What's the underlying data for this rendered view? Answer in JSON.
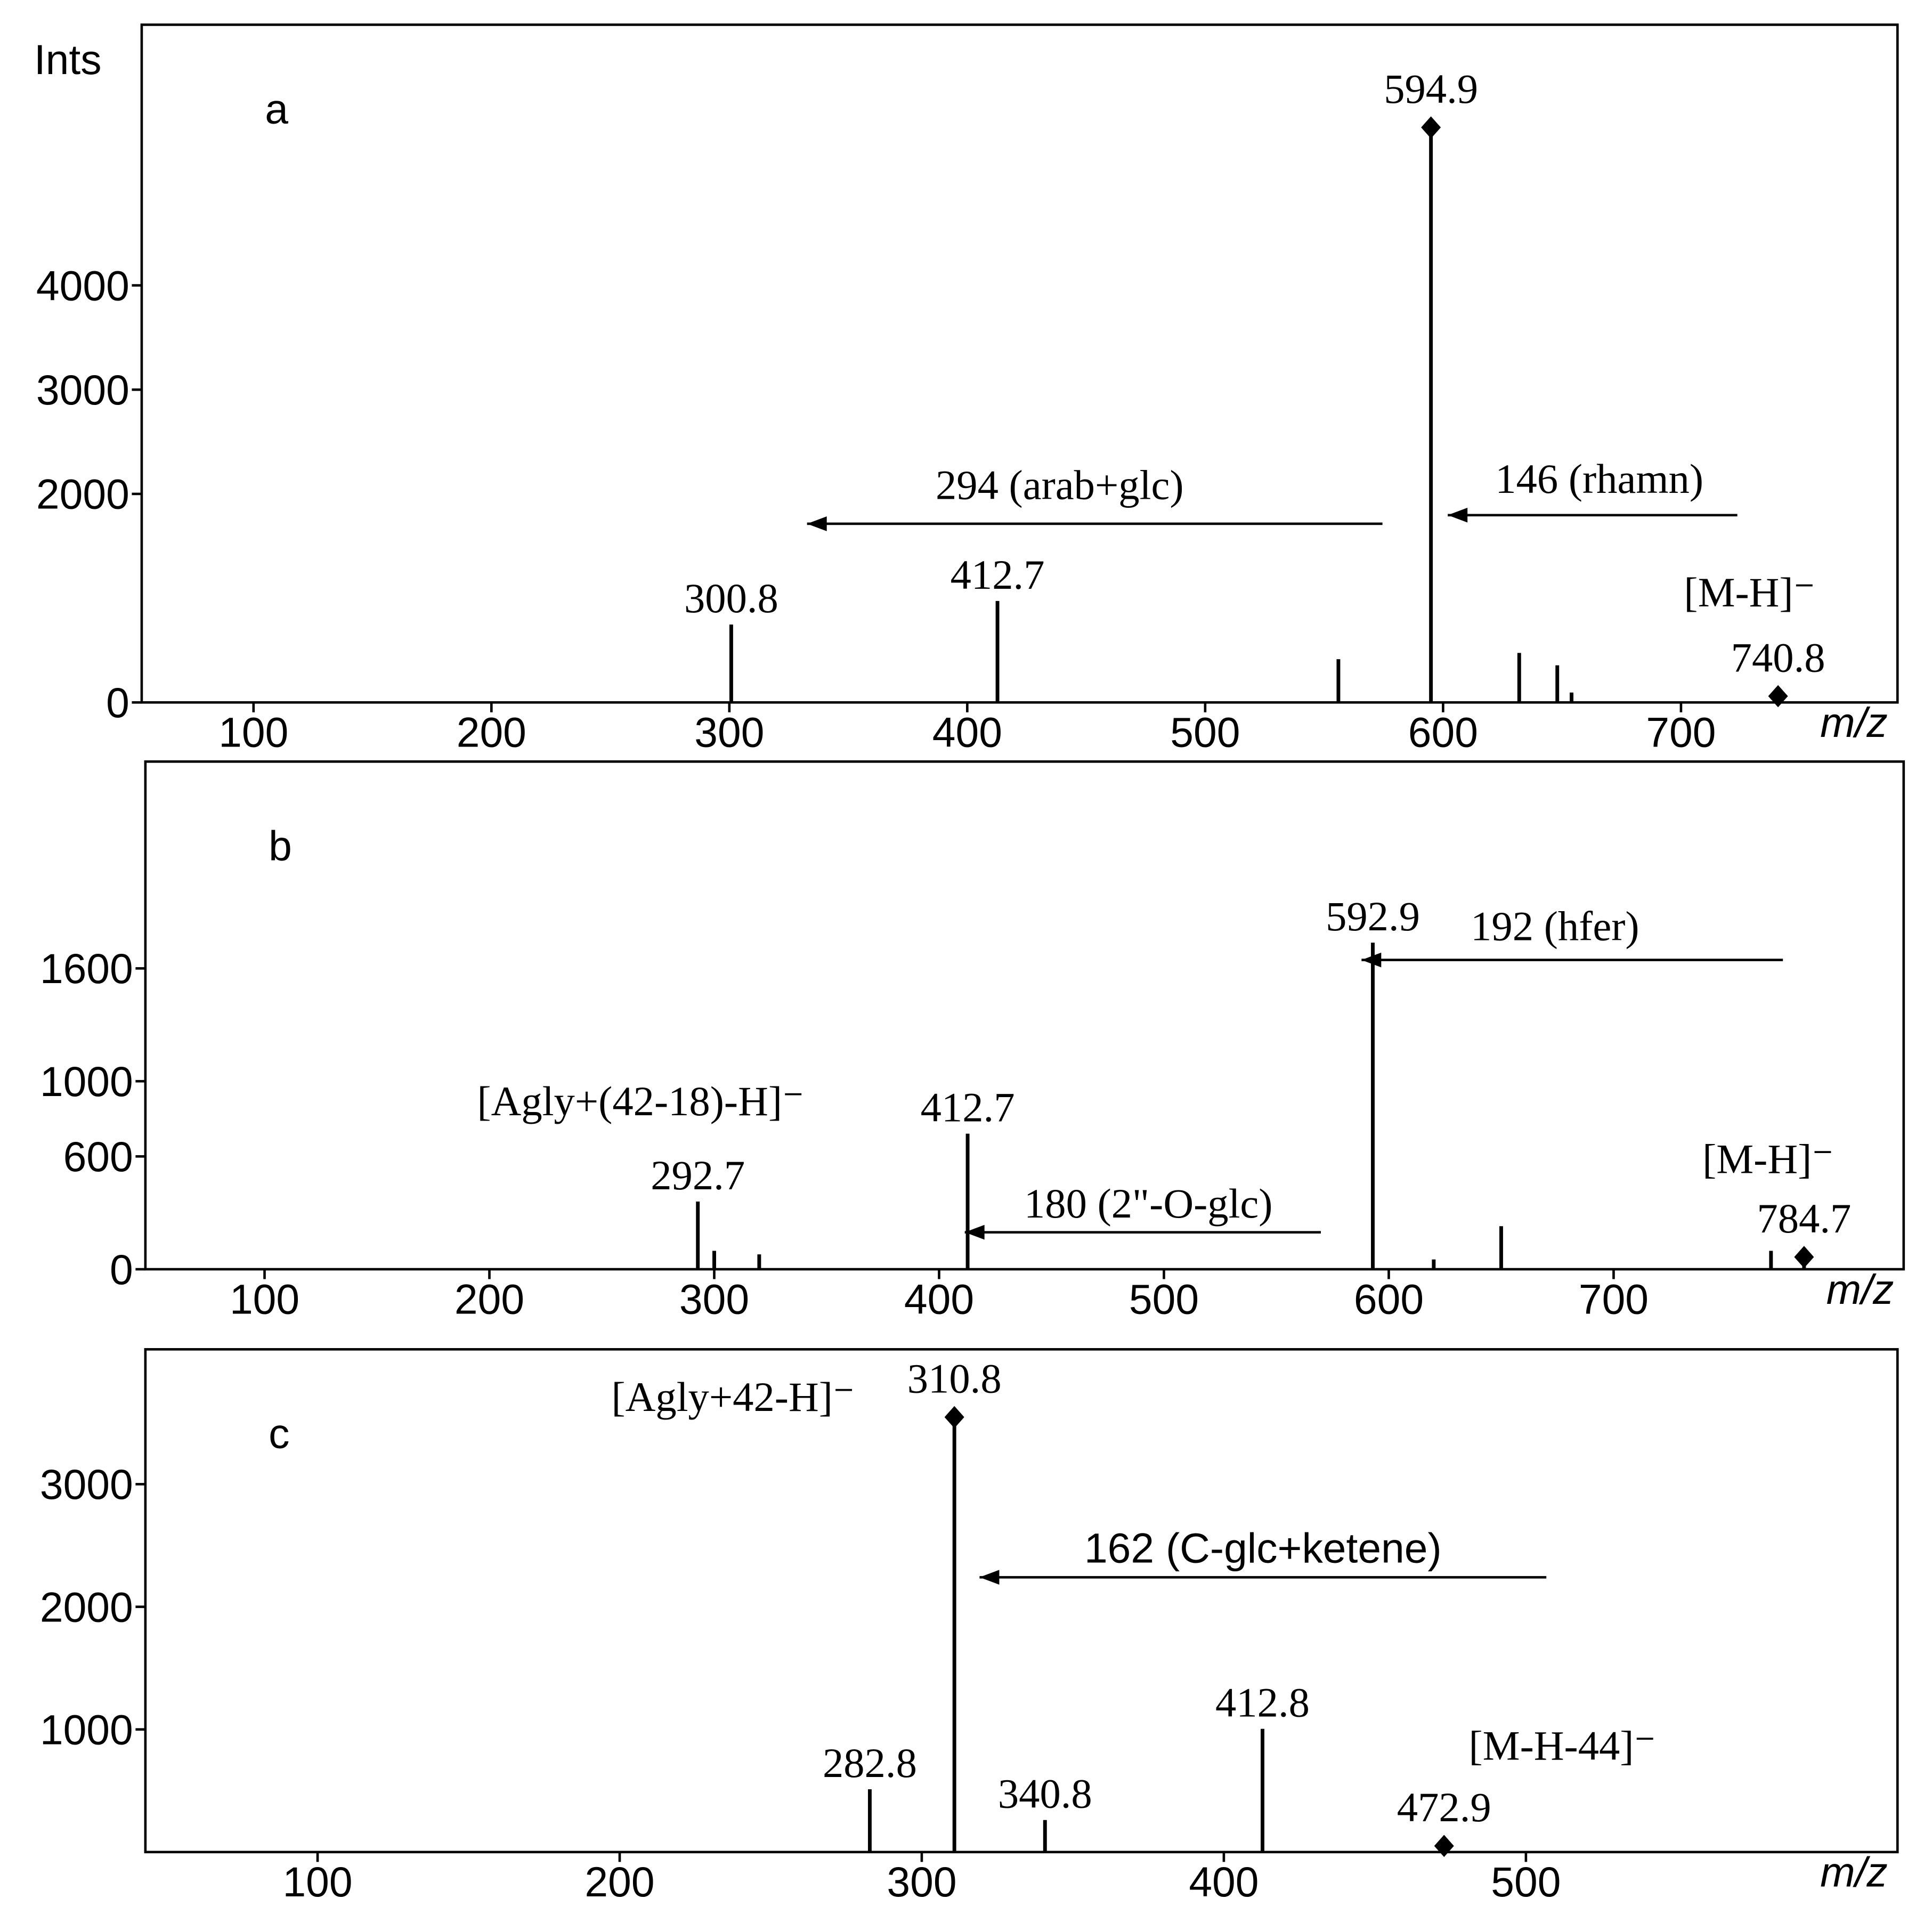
{
  "chart_data": [
    {
      "type": "bar",
      "letter": "a",
      "ylabel": "Ints",
      "xlabel": "m/z",
      "xlim": [
        53,
        791
      ],
      "xticks": [
        100,
        200,
        300,
        400,
        500,
        600,
        700
      ],
      "ylim": [
        0,
        6500
      ],
      "yticks": [
        0,
        2000,
        3000,
        4000
      ],
      "series": [
        {
          "color": "#000000",
          "marker": "diamond",
          "x_labels": true,
          "x": [
            594.9,
            740.8
          ],
          "values": [
            5515,
            60
          ]
        },
        {
          "color": "#000000",
          "x_labels": true,
          "x": [
            300.8,
            412.7
          ],
          "values": [
            747,
            973
          ]
        },
        {
          "color": "#000000",
          "x": [
            556,
            632,
            648,
            654
          ],
          "values": [
            415,
            475,
            356,
            95
          ]
        }
      ],
      "annotations": [
        "294 (arab+glc)",
        "146 (rhamn)",
        "[M-H]⁻"
      ]
    },
    {
      "type": "bar",
      "letter": "b",
      "xlabel": "m/z",
      "xlim": [
        47,
        829
      ],
      "xticks": [
        100,
        200,
        300,
        400,
        500,
        600,
        700
      ],
      "ylim": [
        0,
        2700
      ],
      "yticks": [
        0,
        600,
        1000,
        1600
      ],
      "series": [
        {
          "color": "#000000",
          "marker": "diamond",
          "x_labels": true,
          "x": [
            784.7
          ],
          "values": [
            65
          ]
        },
        {
          "color": "#000000",
          "x_labels": true,
          "x": [
            292.7,
            412.7,
            592.9
          ],
          "values": [
            360,
            721,
            1737
          ]
        },
        {
          "color": "#000000",
          "x": [
            300,
            320,
            620,
            650,
            770
          ],
          "values": [
            98,
            79,
            52,
            229,
            98
          ]
        }
      ],
      "annotations": [
        "[Agly+(42-18)-H]⁻",
        "192 (hfer)",
        "180 (2\"-O-glc)",
        "[M-H]⁻"
      ]
    },
    {
      "type": "bar",
      "letter": "c",
      "xlabel": "m/z",
      "xlim": [
        43,
        623
      ],
      "xticks": [
        100,
        200,
        300,
        400,
        500
      ],
      "ylim": [
        0,
        4100
      ],
      "yticks": [
        1000,
        2000,
        3000
      ],
      "series": [
        {
          "color": "#000000",
          "marker": "diamond",
          "x_labels": true,
          "x": [
            310.8,
            472.9
          ],
          "values": [
            3547,
            50
          ]
        },
        {
          "color": "#000000",
          "x_labels": true,
          "x": [
            282.8,
            340.8,
            412.8
          ],
          "values": [
            512,
            261,
            1005
          ]
        }
      ],
      "annotations": [
        "[Agly+42-H]⁻",
        "162 (C-glc+ketene)",
        "[M-H-44]⁻"
      ]
    }
  ]
}
